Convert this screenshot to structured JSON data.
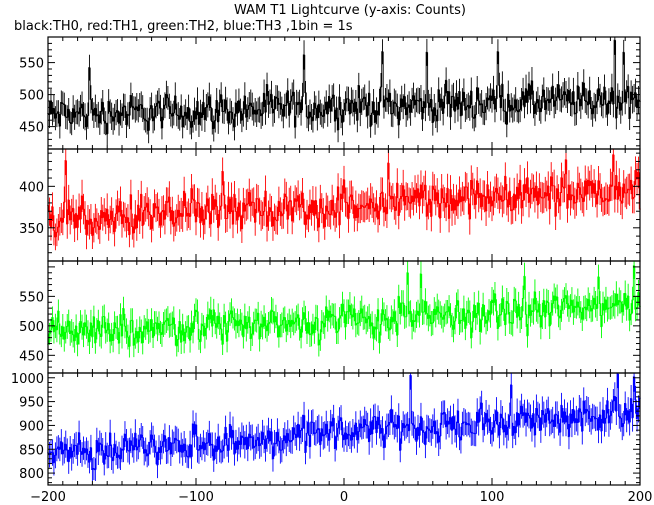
{
  "chart_data": {
    "type": "line",
    "title": "WAM T1 Lightcurve (y-axis: Counts)",
    "subtitle": "black:TH0, red:TH1, green:TH2, blue:TH3 ,1bin = 1s",
    "xlabel": "",
    "ylabel": "",
    "xlim": [
      -200,
      200
    ],
    "x_ticks": [
      -200,
      -100,
      0,
      100,
      200
    ],
    "x_tick_labels": [
      "−200",
      "−100",
      "0",
      "100",
      "200"
    ],
    "x_step": 1,
    "grid": false,
    "panels": [
      {
        "name": "TH0",
        "color": "#000000",
        "ylim": [
          415,
          590
        ],
        "y_ticks": [
          450,
          500,
          550
        ],
        "y_tick_labels": [
          "450",
          "500",
          "550"
        ],
        "trend": [
          [
            -200,
            468
          ],
          [
            -100,
            474
          ],
          [
            0,
            482
          ],
          [
            100,
            488
          ],
          [
            200,
            492
          ]
        ],
        "noise": 24,
        "spikes": [
          [
            -172,
            542
          ],
          [
            -27,
            562
          ],
          [
            26,
            567
          ],
          [
            56,
            566
          ],
          [
            104,
            567
          ],
          [
            183,
            585
          ],
          [
            189,
            566
          ]
        ]
      },
      {
        "name": "TH1",
        "color": "#ff0000",
        "ylim": [
          310,
          445
        ],
        "y_ticks": [
          350,
          400
        ],
        "y_tick_labels": [
          "350",
          "400"
        ],
        "trend": [
          [
            -200,
            360
          ],
          [
            -100,
            370
          ],
          [
            -10,
            372
          ],
          [
            0,
            380
          ],
          [
            100,
            388
          ],
          [
            200,
            400
          ]
        ],
        "noise": 21,
        "spikes": [
          [
            -188,
            431
          ],
          [
            -82,
            418
          ],
          [
            30,
            428
          ],
          [
            150,
            432
          ],
          [
            182,
            438
          ]
        ]
      },
      {
        "name": "TH2",
        "color": "#00ff00",
        "ylim": [
          420,
          610
        ],
        "y_ticks": [
          450,
          500,
          550
        ],
        "y_tick_labels": [
          "450",
          "500",
          "550"
        ],
        "trend": [
          [
            -200,
            490
          ],
          [
            -100,
            500
          ],
          [
            0,
            508
          ],
          [
            100,
            520
          ],
          [
            200,
            540
          ]
        ],
        "noise": 27,
        "spikes": [
          [
            43,
            590
          ],
          [
            52,
            588
          ],
          [
            122,
            584
          ],
          [
            172,
            583
          ],
          [
            196,
            602
          ]
        ]
      },
      {
        "name": "TH3",
        "color": "#0000ff",
        "ylim": [
          775,
          1010
        ],
        "y_ticks": [
          800,
          850,
          900,
          950,
          1000
        ],
        "y_tick_labels": [
          "800",
          "850",
          "900",
          "950",
          "1000"
        ],
        "trend": [
          [
            -200,
            845
          ],
          [
            -100,
            860
          ],
          [
            0,
            885
          ],
          [
            100,
            905
          ],
          [
            200,
            930
          ]
        ],
        "noise": 30,
        "spikes": [
          [
            45,
            1005
          ],
          [
            113,
            985
          ],
          [
            185,
            1008
          ],
          [
            196,
            1002
          ]
        ]
      }
    ]
  }
}
